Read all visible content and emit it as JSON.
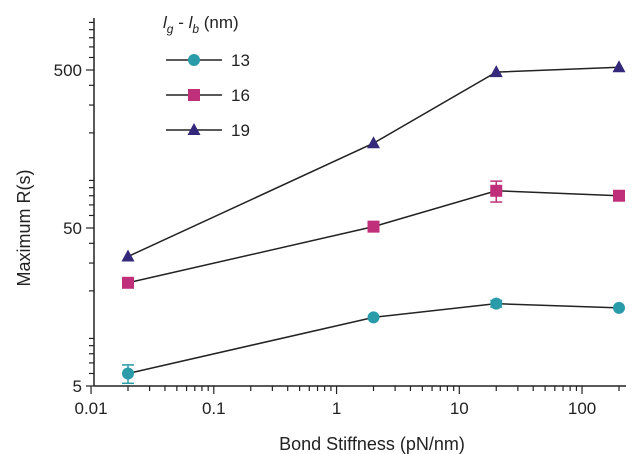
{
  "chart_data": {
    "type": "line",
    "xlabel": "Bond Stiffness (pN/nm)",
    "ylabel": "Maximum R(s)",
    "x_scale": "log",
    "y_scale": "log",
    "xlim": [
      0.01,
      200
    ],
    "ylim": [
      5,
      1000
    ],
    "x_ticks": [
      0.01,
      0.1,
      1,
      10,
      100
    ],
    "x_tick_labels": [
      "0.01",
      "0.1",
      "1",
      "10",
      "100"
    ],
    "y_ticks": [
      5,
      50,
      500
    ],
    "y_tick_labels": [
      "5",
      "50",
      "500"
    ],
    "grid": false,
    "legend": {
      "placement": "top-left",
      "title_parts": {
        "l1": "l",
        "sub1": "g",
        "sep": " - ",
        "l2": "l",
        "sub2": "b",
        "unit": " (nm)"
      }
    },
    "x": [
      0.02,
      2,
      20,
      200
    ],
    "series": [
      {
        "name": "13",
        "marker": "circle",
        "color": "#2a9ba8",
        "values": [
          6.0,
          13.6,
          16.6,
          15.6
        ],
        "err": [
          0.8,
          0,
          0.8,
          0
        ]
      },
      {
        "name": "16",
        "marker": "square",
        "color": "#c0307a",
        "values": [
          22.5,
          51.0,
          86.0,
          80.0
        ],
        "err": [
          0,
          2.5,
          13,
          0
        ]
      },
      {
        "name": "19",
        "marker": "triangle",
        "color": "#33287a",
        "values": [
          33.0,
          172.0,
          485.0,
          520.0
        ],
        "err": [
          0,
          0,
          0,
          0
        ]
      }
    ]
  }
}
